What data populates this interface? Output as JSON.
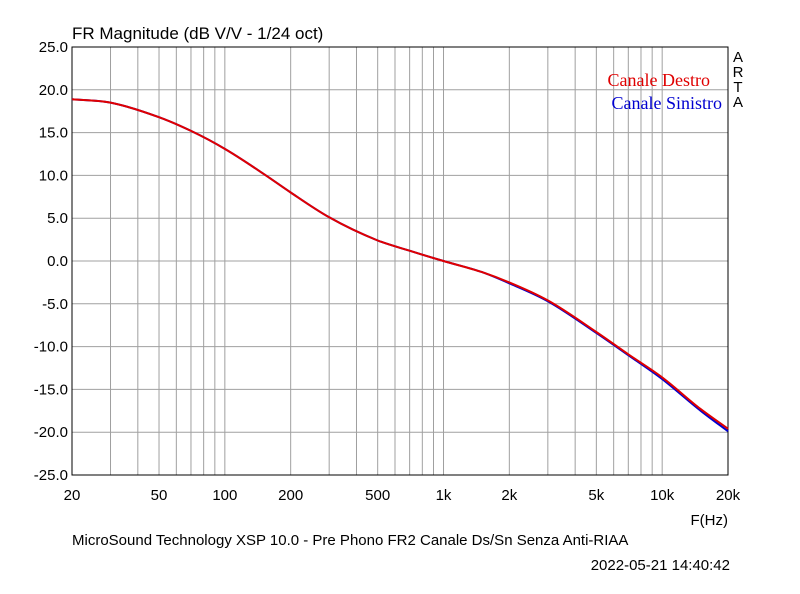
{
  "chart_data": {
    "type": "line",
    "title": "FR Magnitude (dB V/V - 1/24 oct)",
    "xlabel": "F(Hz)",
    "x_scale": "log",
    "xlim": [
      20,
      20000
    ],
    "ylim": [
      -25,
      25
    ],
    "grid": true,
    "legend_position": "top-right",
    "x_ticks": [
      {
        "value": 20,
        "label": "20"
      },
      {
        "value": 50,
        "label": "50"
      },
      {
        "value": 100,
        "label": "100"
      },
      {
        "value": 200,
        "label": "200"
      },
      {
        "value": 500,
        "label": "500"
      },
      {
        "value": 1000,
        "label": "1k"
      },
      {
        "value": 2000,
        "label": "2k"
      },
      {
        "value": 5000,
        "label": "5k"
      },
      {
        "value": 10000,
        "label": "10k"
      },
      {
        "value": 20000,
        "label": "20k"
      }
    ],
    "y_ticks": [
      {
        "value": 25,
        "label": "25.0"
      },
      {
        "value": 20,
        "label": "20.0"
      },
      {
        "value": 15,
        "label": "15.0"
      },
      {
        "value": 10,
        "label": "10.0"
      },
      {
        "value": 5,
        "label": "5.0"
      },
      {
        "value": 0,
        "label": "0.0"
      },
      {
        "value": -5,
        "label": "-5.0"
      },
      {
        "value": -10,
        "label": "-10.0"
      },
      {
        "value": -15,
        "label": "-15.0"
      },
      {
        "value": -20,
        "label": "-20.0"
      },
      {
        "value": -25,
        "label": "-25.0"
      }
    ],
    "x": [
      20,
      30,
      50,
      70,
      100,
      150,
      200,
      300,
      500,
      700,
      1000,
      1500,
      2000,
      3000,
      5000,
      7000,
      10000,
      15000,
      20000
    ],
    "series": [
      {
        "name": "Canale Destro",
        "color": "#e00000",
        "values": [
          18.9,
          18.5,
          16.8,
          15.2,
          13.1,
          10.2,
          8.0,
          5.1,
          2.4,
          1.2,
          0.0,
          -1.3,
          -2.5,
          -4.6,
          -8.3,
          -10.9,
          -13.6,
          -17.3,
          -19.6
        ]
      },
      {
        "name": "Canale Sinistro",
        "color": "#0000d0",
        "values": [
          18.9,
          18.5,
          16.8,
          15.2,
          13.1,
          10.2,
          8.0,
          5.1,
          2.4,
          1.2,
          0.0,
          -1.3,
          -2.6,
          -4.7,
          -8.4,
          -11.0,
          -13.8,
          -17.5,
          -19.9
        ]
      }
    ]
  },
  "side_label": [
    "A",
    "R",
    "T",
    "A"
  ],
  "footer": {
    "caption": "MicroSound Technology XSP 10.0 - Pre Phono FR2 Canale Ds/Sn Senza Anti-RIAA",
    "timestamp": "2022-05-21  14:40:42"
  }
}
